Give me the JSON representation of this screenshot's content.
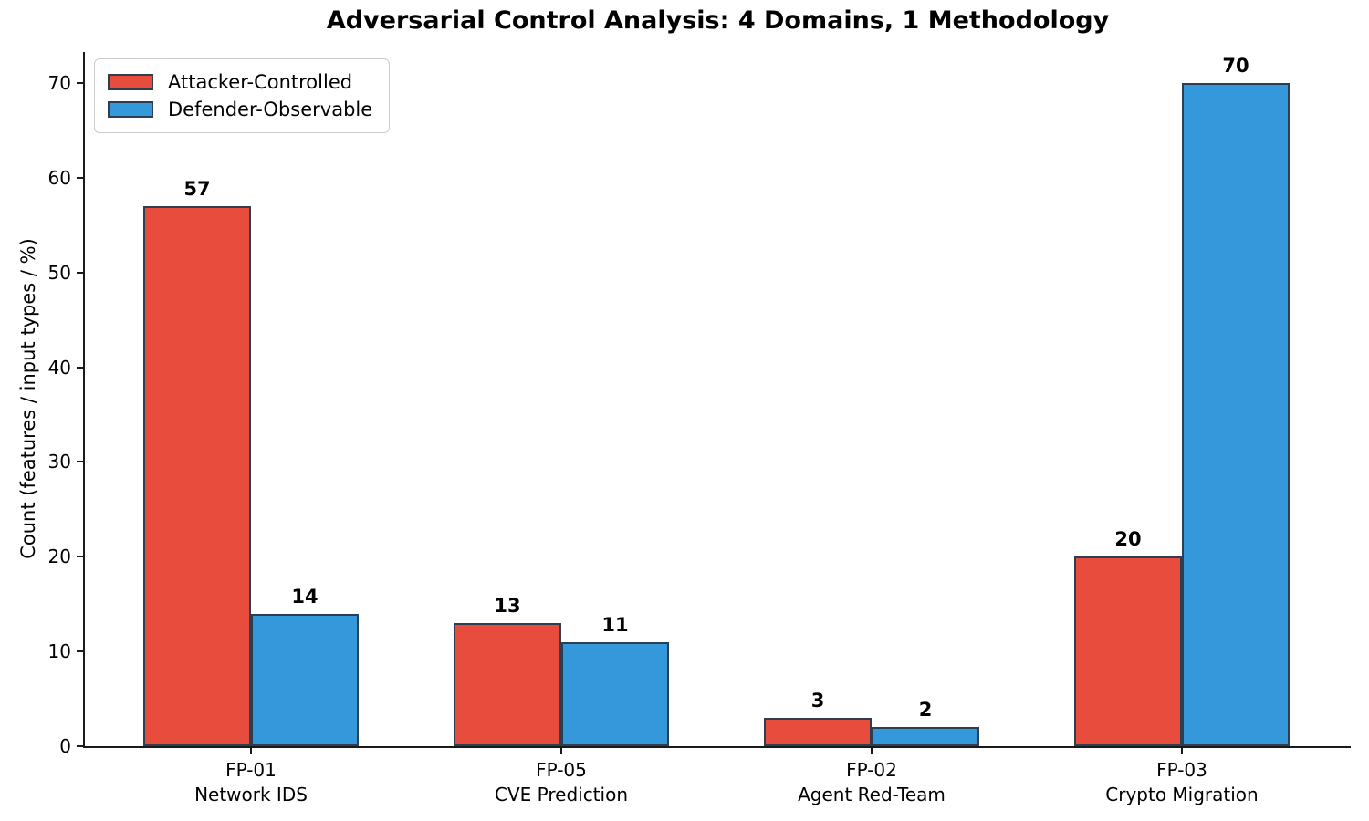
{
  "chart_data": {
    "type": "bar",
    "title": "Adversarial Control Analysis: 4 Domains, 1 Methodology",
    "ylabel": "Count (features / input types / %)",
    "xlabel": "",
    "categories": [
      {
        "code": "FP-01",
        "name": "Network IDS"
      },
      {
        "code": "FP-05",
        "name": "CVE Prediction"
      },
      {
        "code": "FP-02",
        "name": "Agent Red-Team"
      },
      {
        "code": "FP-03",
        "name": "Crypto Migration"
      }
    ],
    "series": [
      {
        "name": "Attacker-Controlled",
        "color": "#e74c3c",
        "values": [
          57,
          13,
          3,
          20
        ]
      },
      {
        "name": "Defender-Observable",
        "color": "#3498db",
        "values": [
          14,
          11,
          2,
          70
        ]
      }
    ],
    "bar_edge_color": "#2c3e50",
    "axis_color": "#1a1a1a",
    "yticks": [
      0,
      10,
      20,
      30,
      40,
      50,
      60,
      70
    ],
    "ylim": [
      0,
      73.5
    ],
    "grid": false,
    "legend_position": "upper left",
    "value_labels": true
  }
}
